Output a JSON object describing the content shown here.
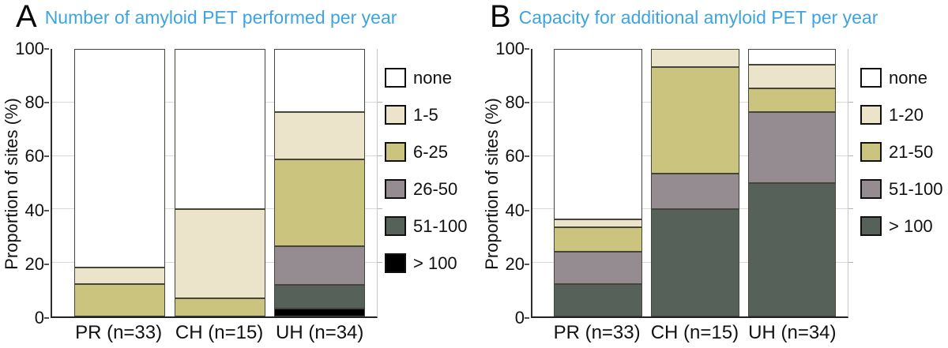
{
  "chart_data": [
    {
      "type": "bar",
      "stacked": true,
      "panel_letter": "A",
      "title": "Number of amyloid PET performed per year",
      "title_color": "#3ea4dd",
      "ylabel": "Proportion of sites (%)",
      "ylim": [
        0,
        100
      ],
      "yticks": [
        0,
        20,
        40,
        60,
        80,
        100
      ],
      "gridlines": [
        20,
        40,
        60,
        80
      ],
      "grid": true,
      "legend_position": "right",
      "categories": [
        "PR (n=33)",
        "CH (n=15)",
        "UH (n=34)"
      ],
      "series": [
        {
          "name": "none",
          "color": "#ffffff",
          "values": [
            81.8,
            60.0,
            23.5
          ]
        },
        {
          "name": "1-5",
          "color": "#ebe4ca",
          "values": [
            6.1,
            33.3,
            17.6
          ]
        },
        {
          "name": "6-25",
          "color": "#cbc47f",
          "values": [
            12.1,
            6.7,
            32.4
          ]
        },
        {
          "name": "26-50",
          "color": "#948c90",
          "values": [
            0,
            0,
            14.7
          ]
        },
        {
          "name": "51-100",
          "color": "#566159",
          "values": [
            0,
            0,
            8.8
          ]
        },
        {
          "name": "> 100",
          "color": "#000000",
          "values": [
            0,
            0,
            2.9
          ]
        }
      ]
    },
    {
      "type": "bar",
      "stacked": true,
      "panel_letter": "B",
      "title": "Capacity for additional amyloid PET per year",
      "title_color": "#3ea4dd",
      "ylabel": "Proportion of sites (%)",
      "ylim": [
        0,
        100
      ],
      "yticks": [
        0,
        20,
        40,
        60,
        80,
        100
      ],
      "gridlines": [
        20,
        40,
        60,
        80
      ],
      "grid": true,
      "legend_position": "right",
      "categories": [
        "PR (n=33)",
        "CH (n=15)",
        "UH (n=34)"
      ],
      "series": [
        {
          "name": "none",
          "color": "#ffffff",
          "values": [
            63.6,
            0,
            5.9
          ]
        },
        {
          "name": "1-20",
          "color": "#ebe4ca",
          "values": [
            3.0,
            6.7,
            8.8
          ]
        },
        {
          "name": "21-50",
          "color": "#cbc47f",
          "values": [
            9.1,
            40.0,
            8.8
          ]
        },
        {
          "name": "51-100",
          "color": "#948c90",
          "values": [
            12.1,
            13.3,
            26.5
          ]
        },
        {
          "name": "> 100",
          "color": "#566159",
          "values": [
            12.1,
            40.0,
            50.0
          ]
        }
      ]
    }
  ]
}
